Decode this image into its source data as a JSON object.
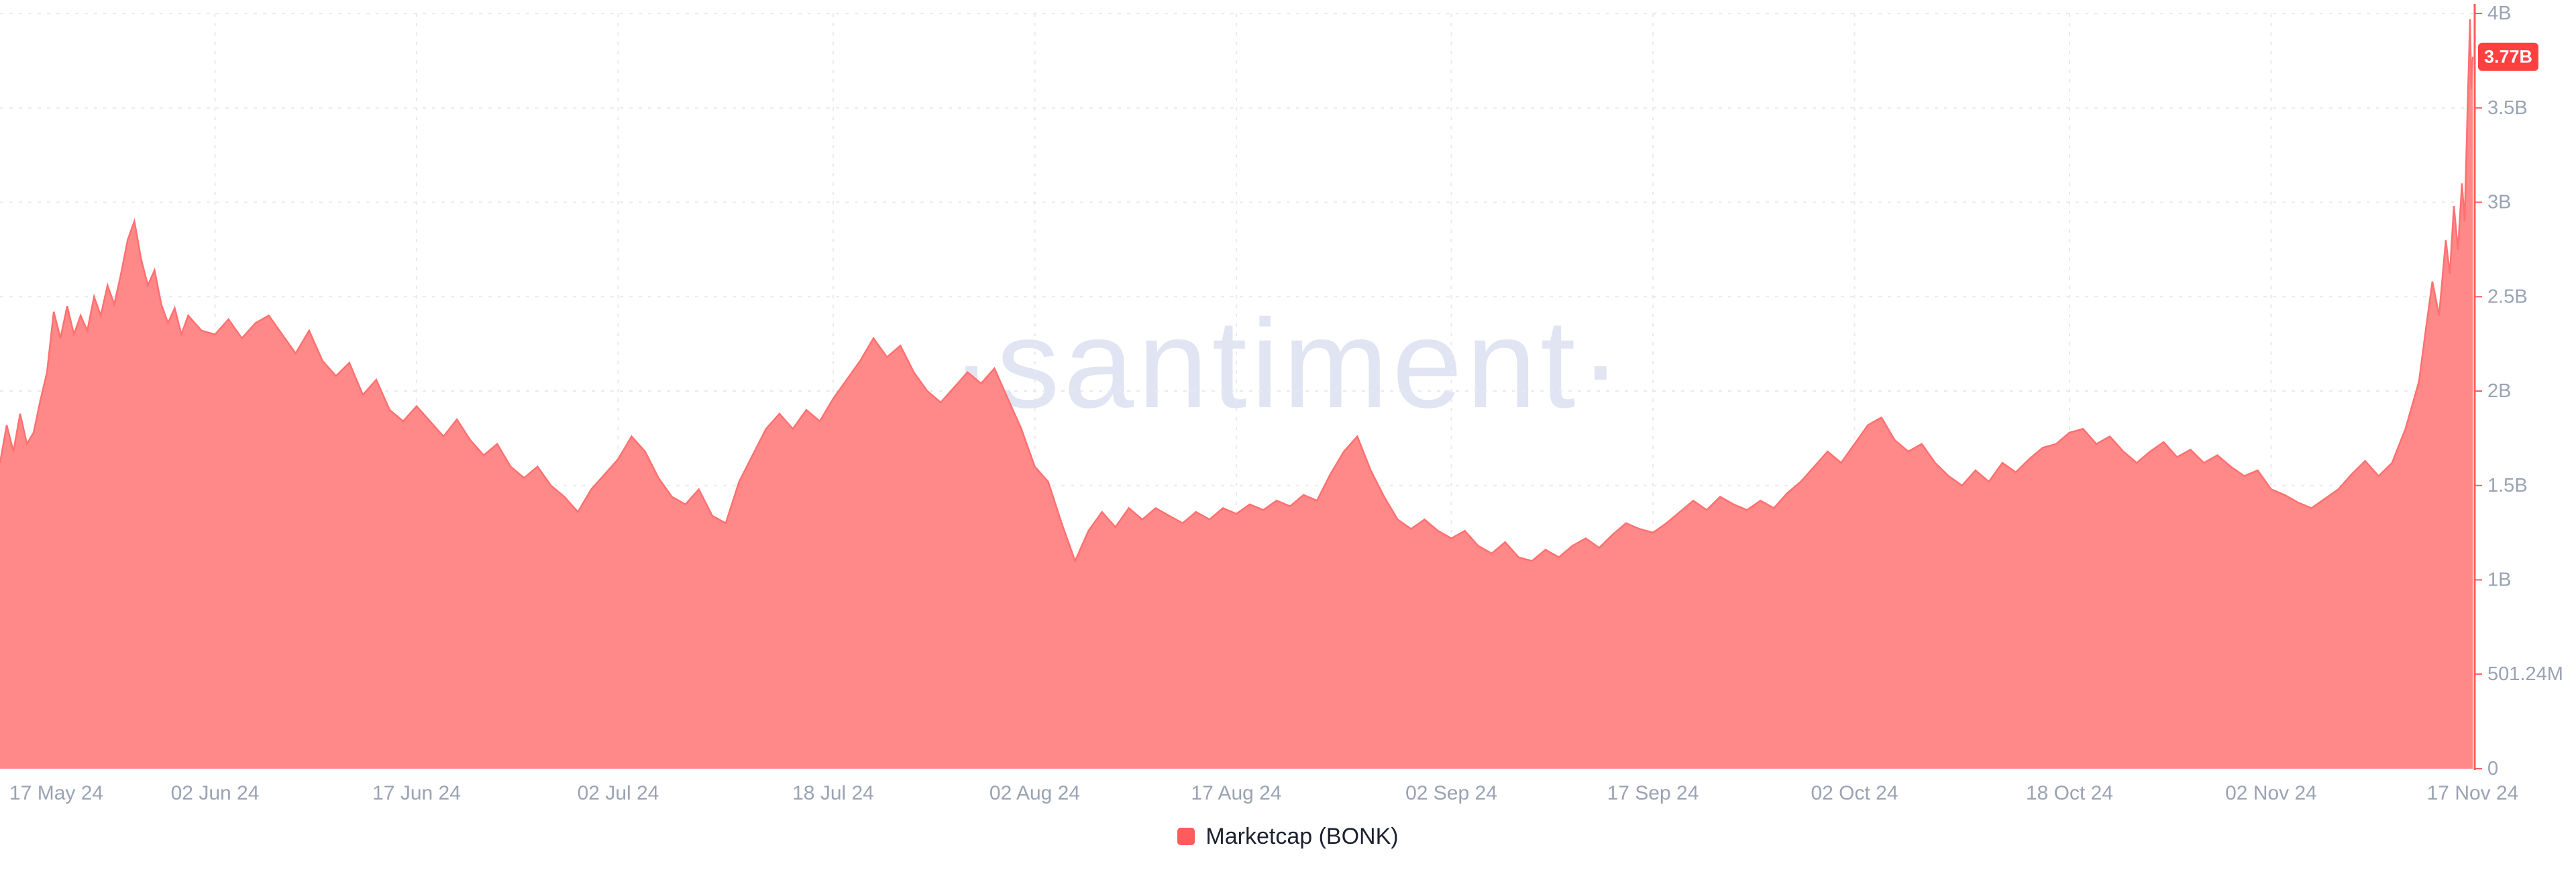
{
  "watermark": "·santiment·",
  "colors": {
    "background": "#ffffff",
    "area_fill": "#ff8888",
    "area_stroke": "#ff7070",
    "axis_line": "#ff5b5b",
    "badge_bg": "#ff4040",
    "badge_text": "#ffffff",
    "grid": "#e7eaf2",
    "tick_label": "#9aa3b4",
    "legend_swatch": "#ff5b5b",
    "legend_text": "#1b2130",
    "watermark": "#e1e4f2"
  },
  "chart_data": {
    "type": "area",
    "title": "",
    "legend_position": "bottom-center",
    "y_axis_side": "right",
    "grid": "dashed",
    "y_unit": "USD (B = billions, M = millions)",
    "ylim": [
      0,
      4
    ],
    "y_max": 4,
    "x_max_day": 184,
    "x_range_labels": [
      "17 May 24",
      "17 Nov 24"
    ],
    "current_value": {
      "label": "3.77B",
      "value": 3.77
    },
    "x_ticks": [
      {
        "day": 0,
        "label": "17 May 24"
      },
      {
        "day": 16,
        "label": "02 Jun 24"
      },
      {
        "day": 31,
        "label": "17 Jun 24"
      },
      {
        "day": 46,
        "label": "02 Jul 24"
      },
      {
        "day": 62,
        "label": "18 Jul 24"
      },
      {
        "day": 77,
        "label": "02 Aug 24"
      },
      {
        "day": 92,
        "label": "17 Aug 24"
      },
      {
        "day": 108,
        "label": "02 Sep 24"
      },
      {
        "day": 123,
        "label": "17 Sep 24"
      },
      {
        "day": 138,
        "label": "02 Oct 24"
      },
      {
        "day": 154,
        "label": "18 Oct 24"
      },
      {
        "day": 169,
        "label": "02 Nov 24"
      },
      {
        "day": 184,
        "label": "17 Nov 24"
      }
    ],
    "y_ticks": [
      {
        "value": 4,
        "label": "4B"
      },
      {
        "value": 3.5,
        "label": "3.5B"
      },
      {
        "value": 3,
        "label": "3B"
      },
      {
        "value": 2.5,
        "label": "2.5B"
      },
      {
        "value": 2,
        "label": "2B"
      },
      {
        "value": 1.5,
        "label": "1.5B"
      },
      {
        "value": 1,
        "label": "1B"
      },
      {
        "value": 0.50124,
        "label": "501.24M"
      },
      {
        "value": 0,
        "label": "0"
      }
    ],
    "series": [
      {
        "name": "Marketcap (BONK)",
        "points": [
          [
            0,
            1.62
          ],
          [
            0.5,
            1.82
          ],
          [
            1,
            1.68
          ],
          [
            1.5,
            1.88
          ],
          [
            2,
            1.72
          ],
          [
            2.5,
            1.78
          ],
          [
            3,
            1.95
          ],
          [
            3.5,
            2.1
          ],
          [
            4,
            2.42
          ],
          [
            4.5,
            2.28
          ],
          [
            5,
            2.45
          ],
          [
            5.5,
            2.3
          ],
          [
            6,
            2.4
          ],
          [
            6.5,
            2.32
          ],
          [
            7,
            2.5
          ],
          [
            7.5,
            2.4
          ],
          [
            8,
            2.56
          ],
          [
            8.5,
            2.46
          ],
          [
            9,
            2.62
          ],
          [
            9.5,
            2.8
          ],
          [
            10,
            2.9
          ],
          [
            10.5,
            2.7
          ],
          [
            11,
            2.56
          ],
          [
            11.5,
            2.64
          ],
          [
            12,
            2.46
          ],
          [
            12.5,
            2.36
          ],
          [
            13,
            2.44
          ],
          [
            13.5,
            2.3
          ],
          [
            14,
            2.4
          ],
          [
            15,
            2.32
          ],
          [
            16,
            2.3
          ],
          [
            17,
            2.38
          ],
          [
            18,
            2.28
          ],
          [
            19,
            2.36
          ],
          [
            20,
            2.4
          ],
          [
            21,
            2.3
          ],
          [
            22,
            2.2
          ],
          [
            23,
            2.32
          ],
          [
            24,
            2.16
          ],
          [
            25,
            2.08
          ],
          [
            26,
            2.15
          ],
          [
            27,
            1.98
          ],
          [
            28,
            2.06
          ],
          [
            29,
            1.9
          ],
          [
            30,
            1.84
          ],
          [
            31,
            1.92
          ],
          [
            32,
            1.84
          ],
          [
            33,
            1.76
          ],
          [
            34,
            1.85
          ],
          [
            35,
            1.74
          ],
          [
            36,
            1.66
          ],
          [
            37,
            1.72
          ],
          [
            38,
            1.6
          ],
          [
            39,
            1.54
          ],
          [
            40,
            1.6
          ],
          [
            41,
            1.5
          ],
          [
            42,
            1.44
          ],
          [
            43,
            1.36
          ],
          [
            44,
            1.48
          ],
          [
            45,
            1.56
          ],
          [
            46,
            1.64
          ],
          [
            47,
            1.76
          ],
          [
            48,
            1.68
          ],
          [
            49,
            1.54
          ],
          [
            50,
            1.44
          ],
          [
            51,
            1.4
          ],
          [
            52,
            1.48
          ],
          [
            53,
            1.34
          ],
          [
            54,
            1.3
          ],
          [
            55,
            1.52
          ],
          [
            56,
            1.66
          ],
          [
            57,
            1.8
          ],
          [
            58,
            1.88
          ],
          [
            59,
            1.8
          ],
          [
            60,
            1.9
          ],
          [
            61,
            1.84
          ],
          [
            62,
            1.96
          ],
          [
            63,
            2.06
          ],
          [
            64,
            2.16
          ],
          [
            65,
            2.28
          ],
          [
            66,
            2.18
          ],
          [
            67,
            2.24
          ],
          [
            68,
            2.1
          ],
          [
            69,
            2.0
          ],
          [
            70,
            1.94
          ],
          [
            71,
            2.02
          ],
          [
            72,
            2.1
          ],
          [
            73,
            2.04
          ],
          [
            74,
            2.12
          ],
          [
            75,
            1.96
          ],
          [
            76,
            1.8
          ],
          [
            77,
            1.6
          ],
          [
            78,
            1.52
          ],
          [
            79,
            1.3
          ],
          [
            80,
            1.1
          ],
          [
            81,
            1.26
          ],
          [
            82,
            1.36
          ],
          [
            83,
            1.28
          ],
          [
            84,
            1.38
          ],
          [
            85,
            1.32
          ],
          [
            86,
            1.38
          ],
          [
            87,
            1.34
          ],
          [
            88,
            1.3
          ],
          [
            89,
            1.36
          ],
          [
            90,
            1.32
          ],
          [
            91,
            1.38
          ],
          [
            92,
            1.35
          ],
          [
            93,
            1.4
          ],
          [
            94,
            1.37
          ],
          [
            95,
            1.42
          ],
          [
            96,
            1.39
          ],
          [
            97,
            1.45
          ],
          [
            98,
            1.42
          ],
          [
            99,
            1.56
          ],
          [
            100,
            1.68
          ],
          [
            101,
            1.76
          ],
          [
            102,
            1.58
          ],
          [
            103,
            1.44
          ],
          [
            104,
            1.32
          ],
          [
            105,
            1.27
          ],
          [
            106,
            1.32
          ],
          [
            107,
            1.26
          ],
          [
            108,
            1.22
          ],
          [
            109,
            1.26
          ],
          [
            110,
            1.18
          ],
          [
            111,
            1.14
          ],
          [
            112,
            1.2
          ],
          [
            113,
            1.12
          ],
          [
            114,
            1.1
          ],
          [
            115,
            1.16
          ],
          [
            116,
            1.12
          ],
          [
            117,
            1.18
          ],
          [
            118,
            1.22
          ],
          [
            119,
            1.17
          ],
          [
            120,
            1.24
          ],
          [
            121,
            1.3
          ],
          [
            122,
            1.27
          ],
          [
            123,
            1.25
          ],
          [
            124,
            1.3
          ],
          [
            125,
            1.36
          ],
          [
            126,
            1.42
          ],
          [
            127,
            1.37
          ],
          [
            128,
            1.44
          ],
          [
            129,
            1.4
          ],
          [
            130,
            1.37
          ],
          [
            131,
            1.42
          ],
          [
            132,
            1.38
          ],
          [
            133,
            1.46
          ],
          [
            134,
            1.52
          ],
          [
            135,
            1.6
          ],
          [
            136,
            1.68
          ],
          [
            137,
            1.62
          ],
          [
            138,
            1.72
          ],
          [
            139,
            1.82
          ],
          [
            140,
            1.86
          ],
          [
            141,
            1.74
          ],
          [
            142,
            1.68
          ],
          [
            143,
            1.72
          ],
          [
            144,
            1.62
          ],
          [
            145,
            1.55
          ],
          [
            146,
            1.5
          ],
          [
            147,
            1.58
          ],
          [
            148,
            1.52
          ],
          [
            149,
            1.62
          ],
          [
            150,
            1.57
          ],
          [
            151,
            1.64
          ],
          [
            152,
            1.7
          ],
          [
            153,
            1.72
          ],
          [
            154,
            1.78
          ],
          [
            155,
            1.8
          ],
          [
            156,
            1.72
          ],
          [
            157,
            1.76
          ],
          [
            158,
            1.68
          ],
          [
            159,
            1.62
          ],
          [
            160,
            1.68
          ],
          [
            161,
            1.73
          ],
          [
            162,
            1.65
          ],
          [
            163,
            1.69
          ],
          [
            164,
            1.62
          ],
          [
            165,
            1.66
          ],
          [
            166,
            1.6
          ],
          [
            167,
            1.55
          ],
          [
            168,
            1.58
          ],
          [
            169,
            1.48
          ],
          [
            170,
            1.45
          ],
          [
            171,
            1.41
          ],
          [
            172,
            1.38
          ],
          [
            173,
            1.43
          ],
          [
            174,
            1.48
          ],
          [
            175,
            1.56
          ],
          [
            176,
            1.63
          ],
          [
            177,
            1.55
          ],
          [
            178,
            1.62
          ],
          [
            179,
            1.8
          ],
          [
            180,
            2.05
          ],
          [
            180.5,
            2.32
          ],
          [
            181,
            2.58
          ],
          [
            181.5,
            2.4
          ],
          [
            182,
            2.8
          ],
          [
            182.3,
            2.62
          ],
          [
            182.6,
            2.98
          ],
          [
            182.9,
            2.75
          ],
          [
            183.2,
            3.1
          ],
          [
            183.4,
            2.9
          ],
          [
            183.6,
            3.45
          ],
          [
            183.8,
            3.97
          ],
          [
            183.9,
            3.6
          ],
          [
            184,
            3.77
          ]
        ]
      }
    ]
  }
}
